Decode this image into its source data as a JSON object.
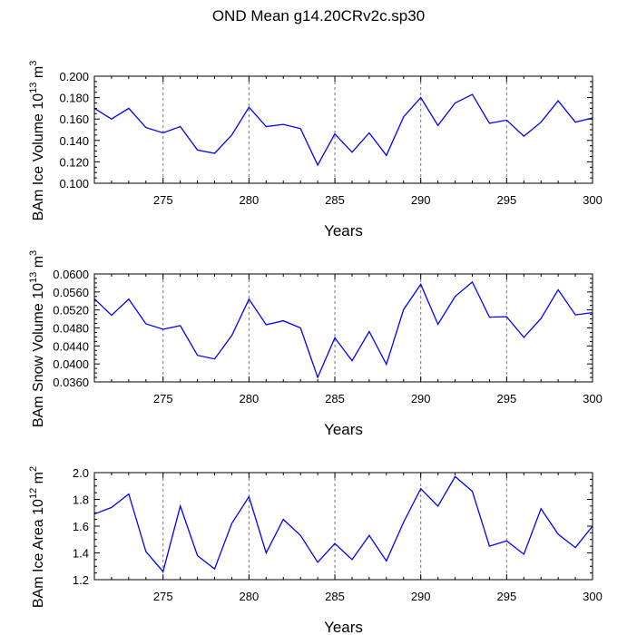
{
  "title": "OND Mean g14.20CRv2c.sp30",
  "chart_data": [
    {
      "type": "line",
      "ylabel": "BAm Ice Volume 10",
      "ylabel_exp": "13",
      "ylabel_unit": " m",
      "ylabel_unit_exp": "3",
      "xlabel": "Years",
      "xlim": [
        271,
        300
      ],
      "ylim": [
        0.1,
        0.2
      ],
      "x_ticks": [
        "275",
        "280",
        "285",
        "290",
        "295",
        "300"
      ],
      "y_ticks": [
        "0.100",
        "0.120",
        "0.140",
        "0.160",
        "0.180",
        "0.200"
      ],
      "grid_x": [
        275,
        280,
        285,
        290,
        295
      ],
      "color": "#0000ff",
      "x": [
        271,
        272,
        273,
        274,
        275,
        276,
        277,
        278,
        279,
        280,
        281,
        282,
        283,
        284,
        285,
        286,
        287,
        288,
        289,
        290,
        291,
        292,
        293,
        294,
        295,
        296,
        297,
        298,
        299,
        300
      ],
      "values": [
        0.17,
        0.16,
        0.17,
        0.152,
        0.147,
        0.153,
        0.131,
        0.128,
        0.145,
        0.171,
        0.153,
        0.155,
        0.151,
        0.117,
        0.146,
        0.129,
        0.147,
        0.126,
        0.162,
        0.18,
        0.154,
        0.175,
        0.183,
        0.156,
        0.159,
        0.144,
        0.157,
        0.177,
        0.157,
        0.161
      ]
    },
    {
      "type": "line",
      "ylabel": "BAm Snow Volume 10",
      "ylabel_exp": "13",
      "ylabel_unit": " m",
      "ylabel_unit_exp": "3",
      "xlabel": "Years",
      "xlim": [
        271,
        300
      ],
      "ylim": [
        0.036,
        0.06
      ],
      "x_ticks": [
        "275",
        "280",
        "285",
        "290",
        "295",
        "300"
      ],
      "y_ticks": [
        "0.0360",
        "0.0400",
        "0.0440",
        "0.0480",
        "0.0520",
        "0.0560",
        "0.0600"
      ],
      "grid_x": [
        275,
        280,
        285,
        290,
        295
      ],
      "color": "#0000ff",
      "x": [
        271,
        272,
        273,
        274,
        275,
        276,
        277,
        278,
        279,
        280,
        281,
        282,
        283,
        284,
        285,
        286,
        287,
        288,
        289,
        290,
        291,
        292,
        293,
        294,
        295,
        296,
        297,
        298,
        299,
        300
      ],
      "values": [
        0.0545,
        0.0508,
        0.0544,
        0.0489,
        0.0477,
        0.0485,
        0.0419,
        0.0411,
        0.0463,
        0.0544,
        0.0487,
        0.0496,
        0.048,
        0.037,
        0.0458,
        0.0407,
        0.0472,
        0.0399,
        0.0521,
        0.0577,
        0.0488,
        0.055,
        0.0582,
        0.0504,
        0.0505,
        0.0459,
        0.0501,
        0.0565,
        0.0509,
        0.0514
      ]
    },
    {
      "type": "line",
      "ylabel": "BAm Ice Area 10",
      "ylabel_exp": "12",
      "ylabel_unit": " m",
      "ylabel_unit_exp": "2",
      "xlabel": "Years",
      "xlim": [
        271,
        300
      ],
      "ylim": [
        1.2,
        2.0
      ],
      "x_ticks": [
        "275",
        "280",
        "285",
        "290",
        "295",
        "300"
      ],
      "y_ticks": [
        "1.2",
        "1.4",
        "1.6",
        "1.8",
        "2.0"
      ],
      "grid_x": [
        275,
        280,
        285,
        290,
        295
      ],
      "color": "#0000ff",
      "x": [
        271,
        272,
        273,
        274,
        275,
        276,
        277,
        278,
        279,
        280,
        281,
        282,
        283,
        284,
        285,
        286,
        287,
        288,
        289,
        290,
        291,
        292,
        293,
        294,
        295,
        296,
        297,
        298,
        299,
        300
      ],
      "values": [
        1.69,
        1.74,
        1.84,
        1.41,
        1.26,
        1.75,
        1.38,
        1.28,
        1.62,
        1.82,
        1.4,
        1.65,
        1.53,
        1.33,
        1.47,
        1.35,
        1.53,
        1.34,
        1.63,
        1.88,
        1.75,
        1.97,
        1.86,
        1.45,
        1.49,
        1.39,
        1.73,
        1.54,
        1.44,
        1.6
      ]
    }
  ]
}
